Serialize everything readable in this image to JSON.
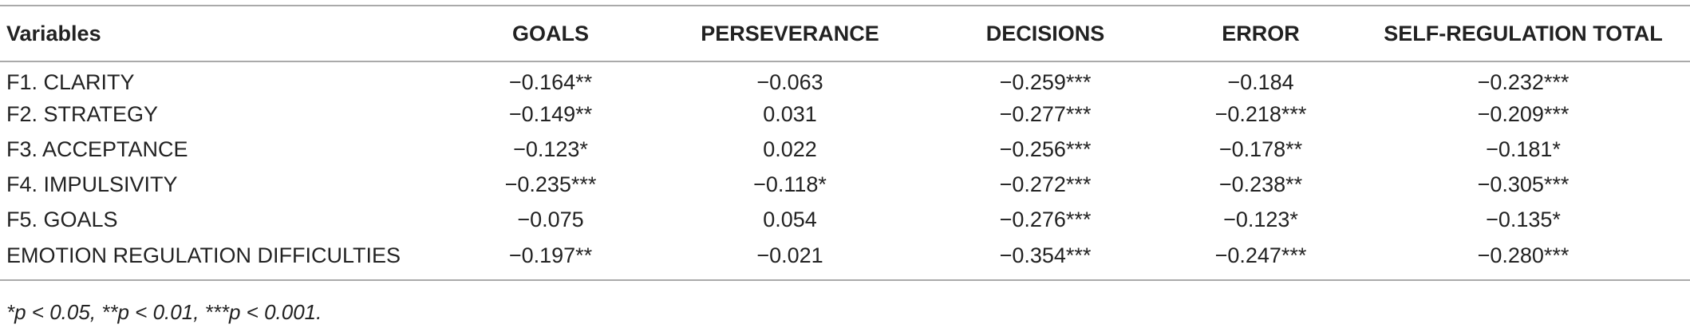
{
  "table": {
    "header": [
      "Variables",
      "GOALS",
      "PERSEVERANCE",
      "DECISIONS",
      "ERROR",
      "SELF-REGULATION TOTAL"
    ],
    "rows": [
      [
        "F1. CLARITY",
        "−0.164**",
        "−0.063",
        "−0.259***",
        "−0.184",
        "−0.232***"
      ],
      [
        "F2. STRATEGY",
        "−0.149**",
        "0.031",
        "−0.277***",
        "−0.218***",
        "−0.209***"
      ],
      [
        "F3. ACCEPTANCE",
        "−0.123*",
        "0.022",
        "−0.256***",
        "−0.178**",
        "−0.181*"
      ],
      [
        "F4. IMPULSIVITY",
        "−0.235***",
        "−0.118*",
        "−0.272***",
        "−0.238**",
        "−0.305***"
      ],
      [
        "F5. GOALS",
        "−0.075",
        "0.054",
        "−0.276***",
        "−0.123*",
        "−0.135*"
      ],
      [
        "EMOTION REGULATION DIFFICULTIES",
        "−0.197**",
        "−0.021",
        "−0.354***",
        "−0.247***",
        "−0.280***"
      ]
    ],
    "footnote": "*p < 0.05, **p < 0.01, ***p < 0.001."
  }
}
